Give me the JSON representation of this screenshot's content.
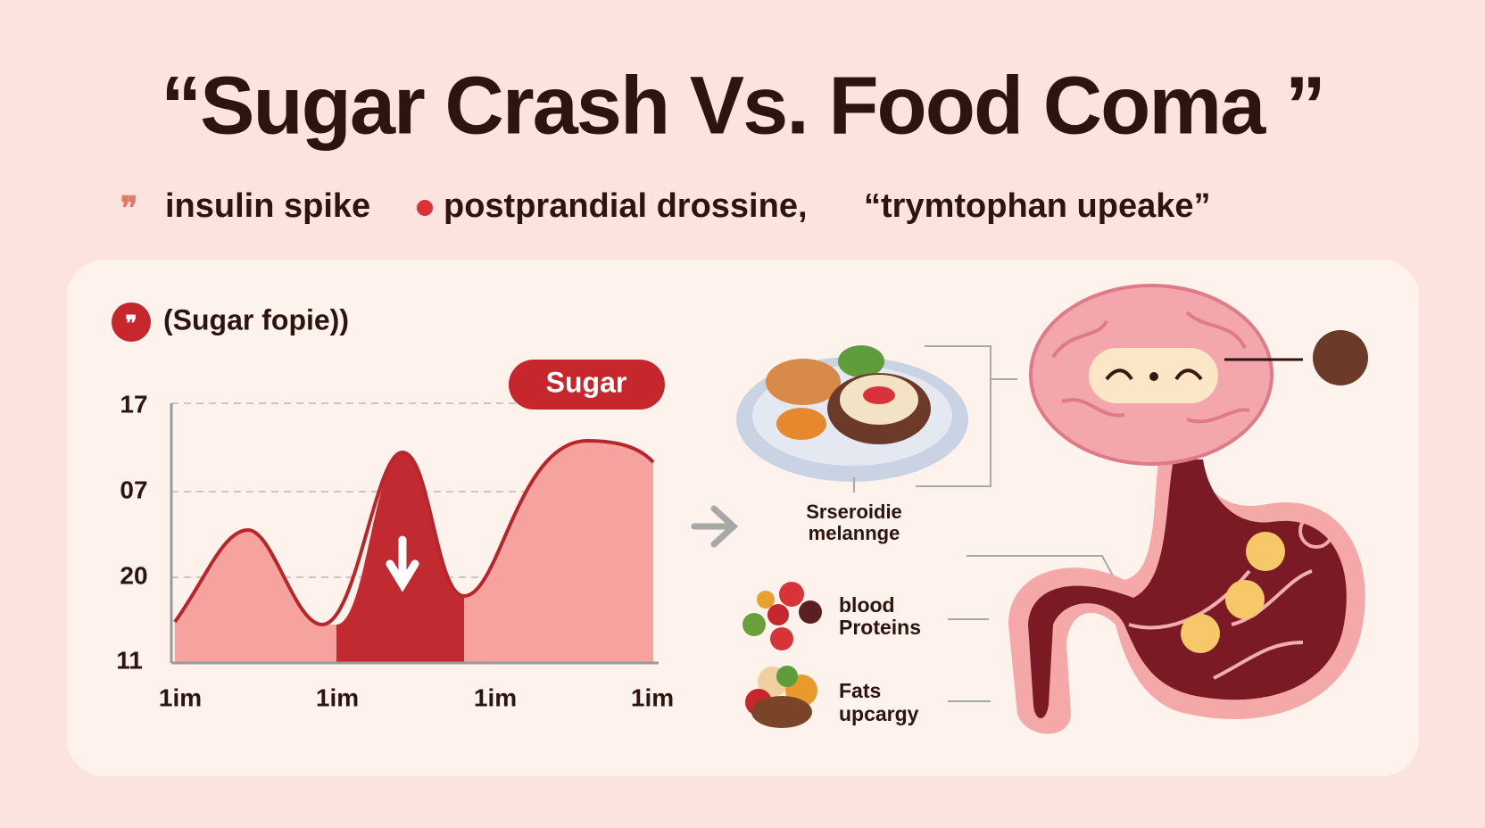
{
  "header": {
    "title": "“Sugar Crash Vs. Food Coma ”"
  },
  "legend": [
    "insulin spike",
    "postprandial drossine,",
    "“trymtophan upeake”"
  ],
  "panel": {
    "title": "(Sugar fopie))",
    "badge": "Sugar"
  },
  "chart": {
    "y_labels": [
      "17",
      "07",
      "20",
      "11"
    ],
    "x_labels": [
      "1im",
      "1im",
      "1im",
      "1im"
    ]
  },
  "labels": {
    "plate": [
      "Srseroidie",
      "melannge"
    ],
    "proteins": [
      "blood",
      "Proteins"
    ],
    "fats": [
      "Fats",
      "upcargy"
    ]
  }
}
